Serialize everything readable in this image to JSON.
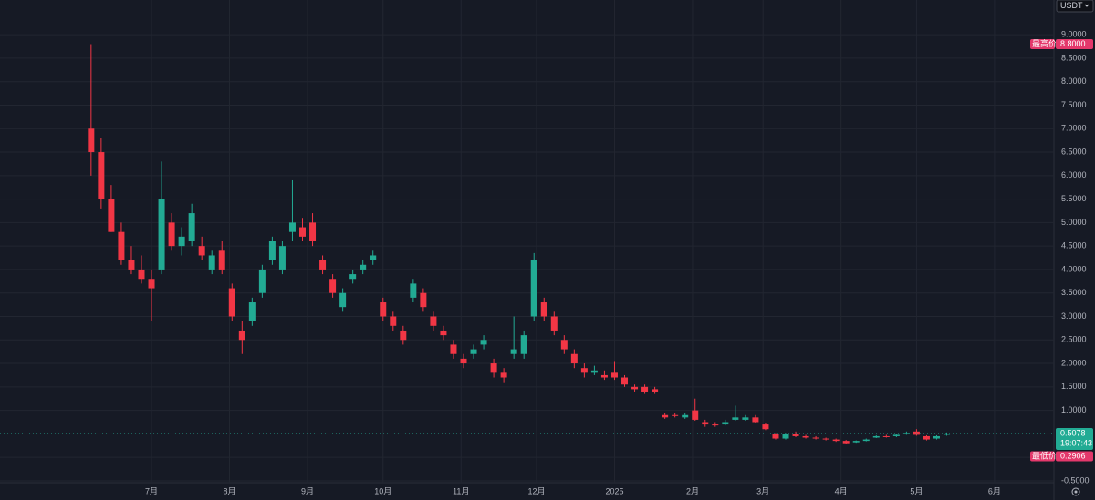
{
  "chart_data": {
    "type": "candlestick",
    "currency": "USDT",
    "x": [
      -24,
      -20,
      -16,
      -12,
      -8,
      -4,
      0,
      4,
      8,
      12,
      16,
      20,
      24,
      28,
      32,
      36,
      40,
      44,
      48,
      52,
      56,
      60,
      64,
      68,
      72,
      76,
      80,
      84,
      88,
      92,
      96,
      100,
      104,
      108,
      112,
      116,
      120,
      124,
      128,
      132,
      136,
      140,
      144,
      148,
      152,
      156,
      160,
      164,
      168,
      172,
      176,
      180,
      184,
      188,
      192,
      196,
      200,
      204,
      208,
      212,
      216,
      220,
      224,
      228,
      232,
      236,
      240,
      244,
      248,
      252,
      256,
      260,
      264,
      268,
      272,
      276,
      280,
      284,
      288,
      292,
      296,
      300,
      304,
      308,
      312,
      316
    ],
    "open": [
      7.0,
      6.5,
      5.5,
      4.8,
      4.2,
      4.0,
      3.8,
      4.0,
      5.0,
      4.5,
      4.6,
      4.5,
      4.0,
      4.4,
      3.6,
      2.7,
      2.9,
      3.5,
      4.2,
      4.0,
      4.8,
      4.9,
      5.0,
      4.2,
      3.8,
      3.2,
      3.8,
      4.0,
      4.2,
      3.3,
      3.0,
      2.7,
      3.4,
      3.5,
      3.0,
      2.7,
      2.4,
      2.1,
      2.2,
      2.4,
      2.0,
      1.8,
      2.2,
      2.2,
      3.0,
      3.3,
      3.0,
      2.5,
      2.2,
      1.9,
      1.8,
      1.75,
      1.8,
      1.7,
      1.5,
      1.5,
      1.45,
      0.9,
      0.9,
      0.85,
      1.0,
      0.75,
      0.7,
      0.7,
      0.8,
      0.8,
      0.85,
      0.7,
      0.5,
      0.4,
      0.5,
      0.45,
      0.42,
      0.4,
      0.38,
      0.35,
      0.32,
      0.35,
      0.42,
      0.45,
      0.45,
      0.5,
      0.55,
      0.45,
      0.4,
      0.48
    ],
    "high": [
      8.8,
      6.8,
      5.8,
      5.0,
      4.5,
      4.3,
      4.0,
      6.3,
      5.2,
      4.9,
      5.4,
      4.7,
      4.4,
      4.6,
      3.7,
      2.9,
      3.4,
      4.1,
      4.7,
      4.6,
      5.9,
      5.1,
      5.2,
      4.3,
      3.9,
      3.6,
      4.0,
      4.2,
      4.4,
      3.4,
      3.1,
      2.8,
      3.8,
      3.6,
      3.1,
      2.8,
      2.5,
      2.2,
      2.4,
      2.6,
      2.1,
      1.9,
      3.0,
      2.7,
      4.35,
      3.4,
      3.1,
      2.6,
      2.3,
      2.0,
      1.95,
      1.85,
      2.05,
      1.75,
      1.55,
      1.55,
      1.5,
      0.95,
      0.95,
      0.95,
      1.25,
      0.8,
      0.75,
      0.8,
      1.1,
      0.9,
      0.9,
      0.72,
      0.52,
      0.52,
      0.55,
      0.48,
      0.45,
      0.42,
      0.4,
      0.37,
      0.36,
      0.4,
      0.47,
      0.48,
      0.5,
      0.55,
      0.6,
      0.47,
      0.47,
      0.53
    ],
    "low": [
      6.0,
      5.3,
      4.8,
      4.1,
      3.9,
      3.7,
      2.9,
      3.9,
      4.4,
      4.3,
      4.5,
      4.2,
      3.9,
      3.9,
      2.9,
      2.2,
      2.8,
      3.4,
      4.1,
      3.9,
      4.6,
      4.6,
      4.5,
      3.9,
      3.4,
      3.1,
      3.7,
      3.9,
      4.1,
      2.9,
      2.7,
      2.4,
      3.3,
      3.1,
      2.7,
      2.5,
      2.1,
      1.9,
      2.1,
      2.3,
      1.7,
      1.6,
      2.1,
      2.1,
      2.9,
      2.9,
      2.6,
      2.2,
      1.9,
      1.7,
      1.75,
      1.65,
      1.65,
      1.5,
      1.4,
      1.35,
      1.35,
      0.82,
      0.85,
      0.82,
      0.78,
      0.65,
      0.65,
      0.68,
      0.78,
      0.78,
      0.72,
      0.58,
      0.38,
      0.38,
      0.43,
      0.4,
      0.38,
      0.36,
      0.33,
      0.2906,
      0.31,
      0.34,
      0.41,
      0.42,
      0.43,
      0.48,
      0.46,
      0.36,
      0.38,
      0.46
    ],
    "close": [
      6.5,
      5.5,
      4.8,
      4.2,
      4.0,
      3.8,
      3.6,
      5.5,
      4.5,
      4.7,
      5.2,
      4.3,
      4.3,
      4.0,
      3.0,
      2.5,
      3.3,
      4.0,
      4.6,
      4.5,
      5.0,
      4.7,
      4.6,
      4.0,
      3.5,
      3.5,
      3.9,
      4.1,
      4.3,
      3.0,
      2.8,
      2.5,
      3.7,
      3.2,
      2.8,
      2.6,
      2.2,
      2.0,
      2.3,
      2.5,
      1.8,
      1.7,
      2.3,
      2.6,
      4.2,
      3.0,
      2.7,
      2.3,
      2.0,
      1.8,
      1.85,
      1.7,
      1.7,
      1.55,
      1.45,
      1.4,
      1.4,
      0.85,
      0.88,
      0.9,
      0.8,
      0.7,
      0.68,
      0.75,
      0.85,
      0.85,
      0.75,
      0.6,
      0.4,
      0.5,
      0.45,
      0.42,
      0.4,
      0.38,
      0.35,
      0.3,
      0.35,
      0.38,
      0.45,
      0.44,
      0.48,
      0.52,
      0.48,
      0.38,
      0.45,
      0.5078
    ],
    "up_color": "#22ab94",
    "down_color": "#f23645",
    "xlim": [
      -60.2,
      358.6
    ],
    "xticks": [
      {
        "value": 0,
        "label": "7月"
      },
      {
        "value": 31,
        "label": "8月"
      },
      {
        "value": 62,
        "label": "9月"
      },
      {
        "value": 92,
        "label": "10月"
      },
      {
        "value": 123,
        "label": "11月"
      },
      {
        "value": 153,
        "label": "12月"
      },
      {
        "value": 184,
        "label": "2025"
      },
      {
        "value": 215,
        "label": "2月"
      },
      {
        "value": 243,
        "label": "3月"
      },
      {
        "value": 274,
        "label": "4月"
      },
      {
        "value": 304,
        "label": "5月"
      },
      {
        "value": 335,
        "label": "6月"
      }
    ],
    "ylim": [
      -0.54,
      9.74
    ],
    "yticks": [
      {
        "value": -0.5,
        "label": "-0.5000"
      },
      {
        "value": 0,
        "label": "0.0000"
      },
      {
        "value": 0.5,
        "label": "0.5000"
      },
      {
        "value": 1,
        "label": "1.0000"
      },
      {
        "value": 1.5,
        "label": "1.5000"
      },
      {
        "value": 2,
        "label": "2.0000"
      },
      {
        "value": 2.5,
        "label": "2.5000"
      },
      {
        "value": 3,
        "label": "3.0000"
      },
      {
        "value": 3.5,
        "label": "3.5000"
      },
      {
        "value": 4,
        "label": "4.0000"
      },
      {
        "value": 4.5,
        "label": "4.5000"
      },
      {
        "value": 5,
        "label": "5.0000"
      },
      {
        "value": 5.5,
        "label": "5.5000"
      },
      {
        "value": 6,
        "label": "6.0000"
      },
      {
        "value": 6.5,
        "label": "6.5000"
      },
      {
        "value": 7,
        "label": "7.0000"
      },
      {
        "value": 7.5,
        "label": "7.5000"
      },
      {
        "value": 8,
        "label": "8.0000"
      },
      {
        "value": 8.5,
        "label": "8.5000"
      },
      {
        "value": 9,
        "label": "9.0000"
      }
    ],
    "grid": true,
    "high_marker": {
      "text": "最高价",
      "value": {
        "value": 8.8,
        "label": "8.8000"
      }
    },
    "low_marker": {
      "text": "最低价",
      "value": 0.2906
    },
    "last_price": {
      "value": 0.5078,
      "time": "19:07:43"
    }
  }
}
